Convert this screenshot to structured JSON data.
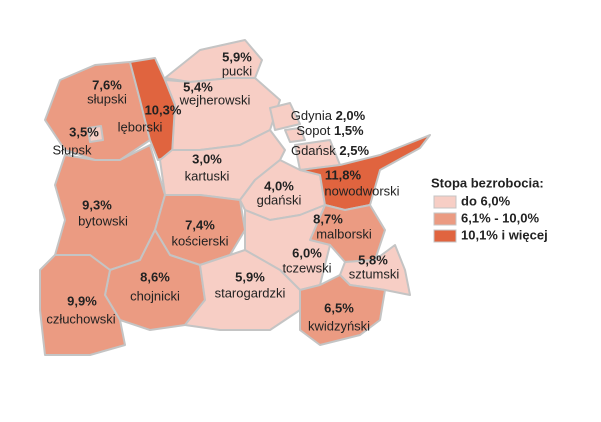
{
  "chart_data": {
    "type": "choropleth",
    "categories": [
      "pucki",
      "wejherowski",
      "słupski",
      "lęborski",
      "Słupsk",
      "Gdynia",
      "Sopot",
      "Gdańsk",
      "kartuski",
      "gdański",
      "nowodworski",
      "bytowski",
      "kościerski",
      "malborski",
      "tczewski",
      "sztumski",
      "chojnicki",
      "starogardzki",
      "człuchowski",
      "kwidzyński"
    ],
    "values": [
      5.9,
      5.4,
      7.6,
      10.3,
      3.5,
      2.0,
      1.5,
      2.5,
      3.0,
      4.0,
      11.8,
      9.3,
      7.4,
      8.7,
      6.0,
      5.8,
      8.6,
      5.9,
      9.9,
      6.5
    ],
    "value_labels": [
      "5,9%",
      "5,4%",
      "7,6%",
      "10,3%",
      "3,5%",
      "2,0%",
      "1,5%",
      "2,5%",
      "3,0%",
      "4,0%",
      "11,8%",
      "9,3%",
      "7,4%",
      "8,7%",
      "6,0%",
      "5,8%",
      "8,6%",
      "5,9%",
      "9,9%",
      "6,5%"
    ],
    "colors": [
      "#f7cec5",
      "#f7cec5",
      "#eb9b82",
      "#e0643f",
      "#f7cec5",
      "#f7cec5",
      "#f7cec5",
      "#f7cec5",
      "#f7cec5",
      "#f7cec5",
      "#e0643f",
      "#eb9b82",
      "#eb9b82",
      "#eb9b82",
      "#f7cec5",
      "#f7cec5",
      "#eb9b82",
      "#f7cec5",
      "#eb9b82",
      "#eb9b82"
    ],
    "legend": {
      "title": "Stopa bezrobocia:",
      "items": [
        {
          "label": "do 6,0%",
          "color": "#f7cec5"
        },
        {
          "label": "6,1% - 10,0%",
          "color": "#eb9b82"
        },
        {
          "label": "10,1% i więcej",
          "color": "#e0643f"
        }
      ]
    }
  }
}
